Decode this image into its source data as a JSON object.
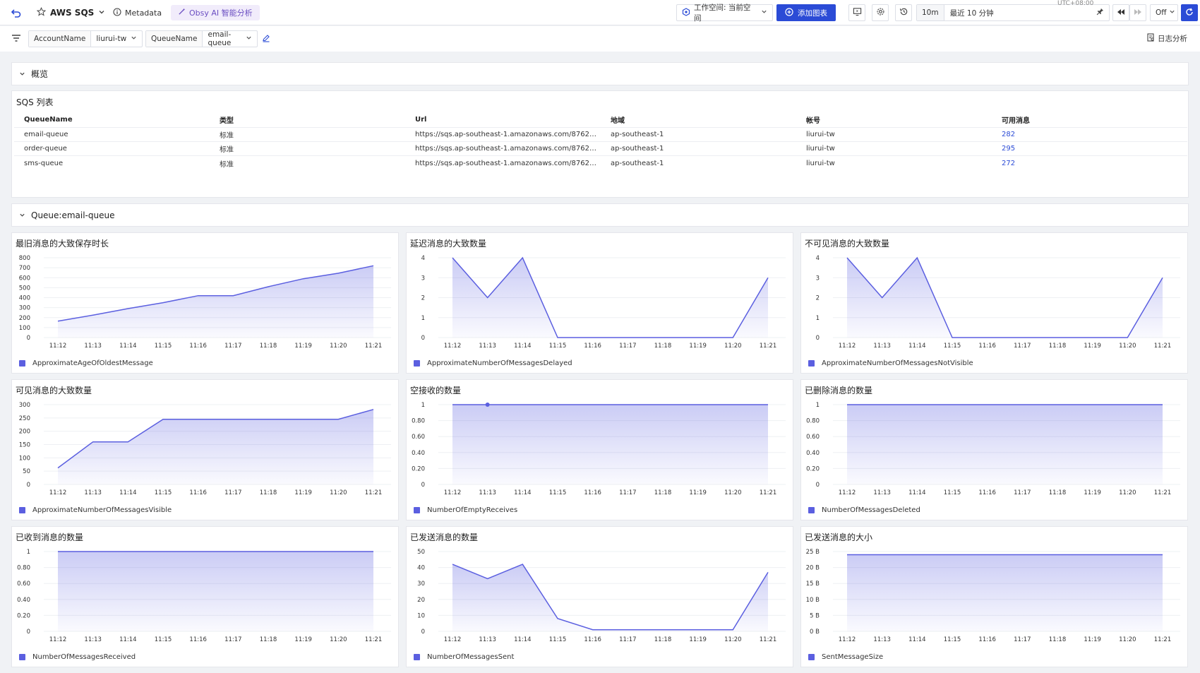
{
  "header": {
    "title": "AWS SQS",
    "metadata_label": "Metadata",
    "ai_label": "Obsy AI 智能分析",
    "workspace_label": "工作空间: 当前空间",
    "add_chart_label": "添加图表",
    "time_short": "10m",
    "time_range": "最近 10 分钟",
    "timezone": "UTC+08:00",
    "refresh_mode": "Off"
  },
  "filters": {
    "account_key": "AccountName",
    "account_value": "liurui-tw",
    "queue_key": "QueueName",
    "queue_value": "email-queue",
    "log_analysis_label": "日志分析"
  },
  "overview_section": {
    "label": "概览"
  },
  "sqs_table": {
    "title": "SQS 列表",
    "columns": [
      "QueueName",
      "类型",
      "Url",
      "地域",
      "帐号",
      "可用消息"
    ],
    "rows": [
      [
        "email-queue",
        "标准",
        "https://sqs.ap-southeast-1.amazonaws.com/8762677...",
        "ap-southeast-1",
        "liurui-tw",
        "282"
      ],
      [
        "order-queue",
        "标准",
        "https://sqs.ap-southeast-1.amazonaws.com/8762677...",
        "ap-southeast-1",
        "liurui-tw",
        "295"
      ],
      [
        "sms-queue",
        "标准",
        "https://sqs.ap-southeast-1.amazonaws.com/8762677...",
        "ap-southeast-1",
        "liurui-tw",
        "272"
      ]
    ]
  },
  "queue_section": {
    "label": "Queue:email-queue"
  },
  "colors": {
    "accent": "#5b5fe0",
    "primary_button": "#2b4bd6",
    "link": "#2b4bd6"
  },
  "chart_data": [
    {
      "type": "area",
      "title": "最旧消息的大致保存时长",
      "x": [
        "11:12",
        "11:13",
        "11:14",
        "11:15",
        "11:16",
        "11:17",
        "11:18",
        "11:19",
        "11:20",
        "11:21"
      ],
      "yticks": [
        "800",
        "700",
        "600",
        "500",
        "400",
        "300",
        "200",
        "100",
        "0"
      ],
      "ylim": [
        0,
        800
      ],
      "series": [
        {
          "name": "ApproximateAgeOfOldestMessage",
          "values": [
            165,
            225,
            290,
            350,
            420,
            420,
            510,
            590,
            645,
            720
          ]
        }
      ]
    },
    {
      "type": "area",
      "title": "延迟消息的大致数量",
      "x": [
        "11:12",
        "11:13",
        "11:14",
        "11:15",
        "11:16",
        "11:17",
        "11:18",
        "11:19",
        "11:20",
        "11:21"
      ],
      "yticks": [
        "4",
        "3",
        "2",
        "1",
        "0"
      ],
      "ylim": [
        0,
        4
      ],
      "series": [
        {
          "name": "ApproximateNumberOfMessagesDelayed",
          "values": [
            4,
            2,
            4,
            0,
            0,
            0,
            0,
            0,
            0,
            3
          ]
        }
      ]
    },
    {
      "type": "area",
      "title": "不可见消息的大致数量",
      "x": [
        "11:12",
        "11:13",
        "11:14",
        "11:15",
        "11:16",
        "11:17",
        "11:18",
        "11:19",
        "11:20",
        "11:21"
      ],
      "yticks": [
        "4",
        "3",
        "2",
        "1",
        "0"
      ],
      "ylim": [
        0,
        4
      ],
      "series": [
        {
          "name": "ApproximateNumberOfMessagesNotVisible",
          "values": [
            4,
            2,
            4,
            0,
            0,
            0,
            0,
            0,
            0,
            3
          ]
        }
      ]
    },
    {
      "type": "area",
      "title": "可见消息的大致数量",
      "x": [
        "11:12",
        "11:13",
        "11:14",
        "11:15",
        "11:16",
        "11:17",
        "11:18",
        "11:19",
        "11:20",
        "11:21"
      ],
      "yticks": [
        "300",
        "250",
        "200",
        "150",
        "100",
        "50",
        "0"
      ],
      "ylim": [
        0,
        300
      ],
      "series": [
        {
          "name": "ApproximateNumberOfMessagesVisible",
          "values": [
            62,
            160,
            160,
            245,
            245,
            245,
            245,
            245,
            245,
            282
          ]
        }
      ]
    },
    {
      "type": "area",
      "title": "空接收的数量",
      "x": [
        "11:12",
        "11:13",
        "11:14",
        "11:15",
        "11:16",
        "11:17",
        "11:18",
        "11:19",
        "11:20",
        "11:21"
      ],
      "yticks": [
        "1",
        "0.80",
        "0.60",
        "0.40",
        "0.20",
        "0"
      ],
      "ylim": [
        0,
        1
      ],
      "highlight_index": 1,
      "series": [
        {
          "name": "NumberOfEmptyReceives",
          "values": [
            1,
            1,
            1,
            1,
            1,
            1,
            1,
            1,
            1,
            1
          ]
        }
      ]
    },
    {
      "type": "area",
      "title": "已删除消息的数量",
      "x": [
        "11:12",
        "11:13",
        "11:14",
        "11:15",
        "11:16",
        "11:17",
        "11:18",
        "11:19",
        "11:20",
        "11:21"
      ],
      "yticks": [
        "1",
        "0.80",
        "0.60",
        "0.40",
        "0.20",
        "0"
      ],
      "ylim": [
        0,
        1
      ],
      "series": [
        {
          "name": "NumberOfMessagesDeleted",
          "values": [
            1,
            1,
            1,
            1,
            1,
            1,
            1,
            1,
            1,
            1
          ]
        }
      ]
    },
    {
      "type": "area",
      "title": "已收到消息的数量",
      "x": [
        "11:12",
        "11:13",
        "11:14",
        "11:15",
        "11:16",
        "11:17",
        "11:18",
        "11:19",
        "11:20",
        "11:21"
      ],
      "yticks": [
        "1",
        "0.80",
        "0.60",
        "0.40",
        "0.20",
        "0"
      ],
      "ylim": [
        0,
        1
      ],
      "series": [
        {
          "name": "NumberOfMessagesReceived",
          "values": [
            1,
            1,
            1,
            1,
            1,
            1,
            1,
            1,
            1,
            1
          ]
        }
      ]
    },
    {
      "type": "area",
      "title": "已发送消息的数量",
      "x": [
        "11:12",
        "11:13",
        "11:14",
        "11:15",
        "11:16",
        "11:17",
        "11:18",
        "11:19",
        "11:20",
        "11:21"
      ],
      "yticks": [
        "50",
        "40",
        "30",
        "20",
        "10",
        "0"
      ],
      "ylim": [
        0,
        50
      ],
      "series": [
        {
          "name": "NumberOfMessagesSent",
          "values": [
            42,
            33,
            42,
            8,
            1,
            1,
            1,
            1,
            1,
            37
          ]
        }
      ]
    },
    {
      "type": "area",
      "title": "已发送消息的大小",
      "x": [
        "11:12",
        "11:13",
        "11:14",
        "11:15",
        "11:16",
        "11:17",
        "11:18",
        "11:19",
        "11:20",
        "11:21"
      ],
      "yticks": [
        "25 B",
        "20 B",
        "15 B",
        "10 B",
        "5 B",
        "0 B"
      ],
      "ylim": [
        0,
        25
      ],
      "series": [
        {
          "name": "SentMessageSize",
          "values": [
            24,
            24,
            24,
            24,
            24,
            24,
            24,
            24,
            24,
            24
          ]
        }
      ]
    }
  ]
}
